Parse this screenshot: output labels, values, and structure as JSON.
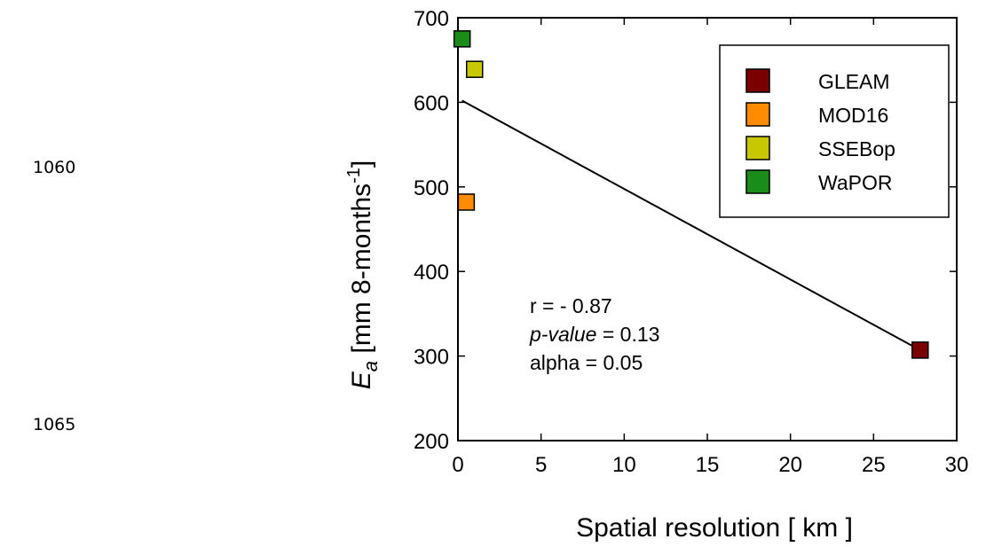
{
  "line_numbers": [
    "1060",
    "1065"
  ],
  "chart_data": {
    "type": "scatter",
    "xlabel": "Spatial resolution [ km ]",
    "ylabel_main": "E",
    "ylabel_sub": "a",
    "ylabel_rest": " [mm 8-months",
    "ylabel_sup": "-1",
    "ylabel_close": "]",
    "xlim": [
      0,
      30
    ],
    "ylim": [
      200,
      700
    ],
    "xticks": [
      0,
      5,
      10,
      15,
      20,
      25,
      30
    ],
    "yticks": [
      200,
      300,
      400,
      500,
      600,
      700
    ],
    "grid": false,
    "legend_position": "top-right",
    "series": [
      {
        "name": "GLEAM",
        "color": "#7b0000",
        "x": [
          27.8
        ],
        "y": [
          307
        ]
      },
      {
        "name": "MOD16",
        "color": "#ff8c00",
        "x": [
          0.5
        ],
        "y": [
          482
        ]
      },
      {
        "name": "SSEBop",
        "color": "#c8c800",
        "x": [
          1.0
        ],
        "y": [
          639
        ]
      },
      {
        "name": "WaPOR",
        "color": "#1a8c1a",
        "x": [
          0.25
        ],
        "y": [
          675
        ]
      }
    ],
    "trend_line": {
      "x": [
        0.25,
        27.8
      ],
      "y": [
        602,
        307
      ]
    },
    "stats": {
      "r": "r = - 0.87",
      "p_label": "p-value",
      "p_rest": " = 0.13",
      "alpha": "alpha = 0.05"
    }
  }
}
